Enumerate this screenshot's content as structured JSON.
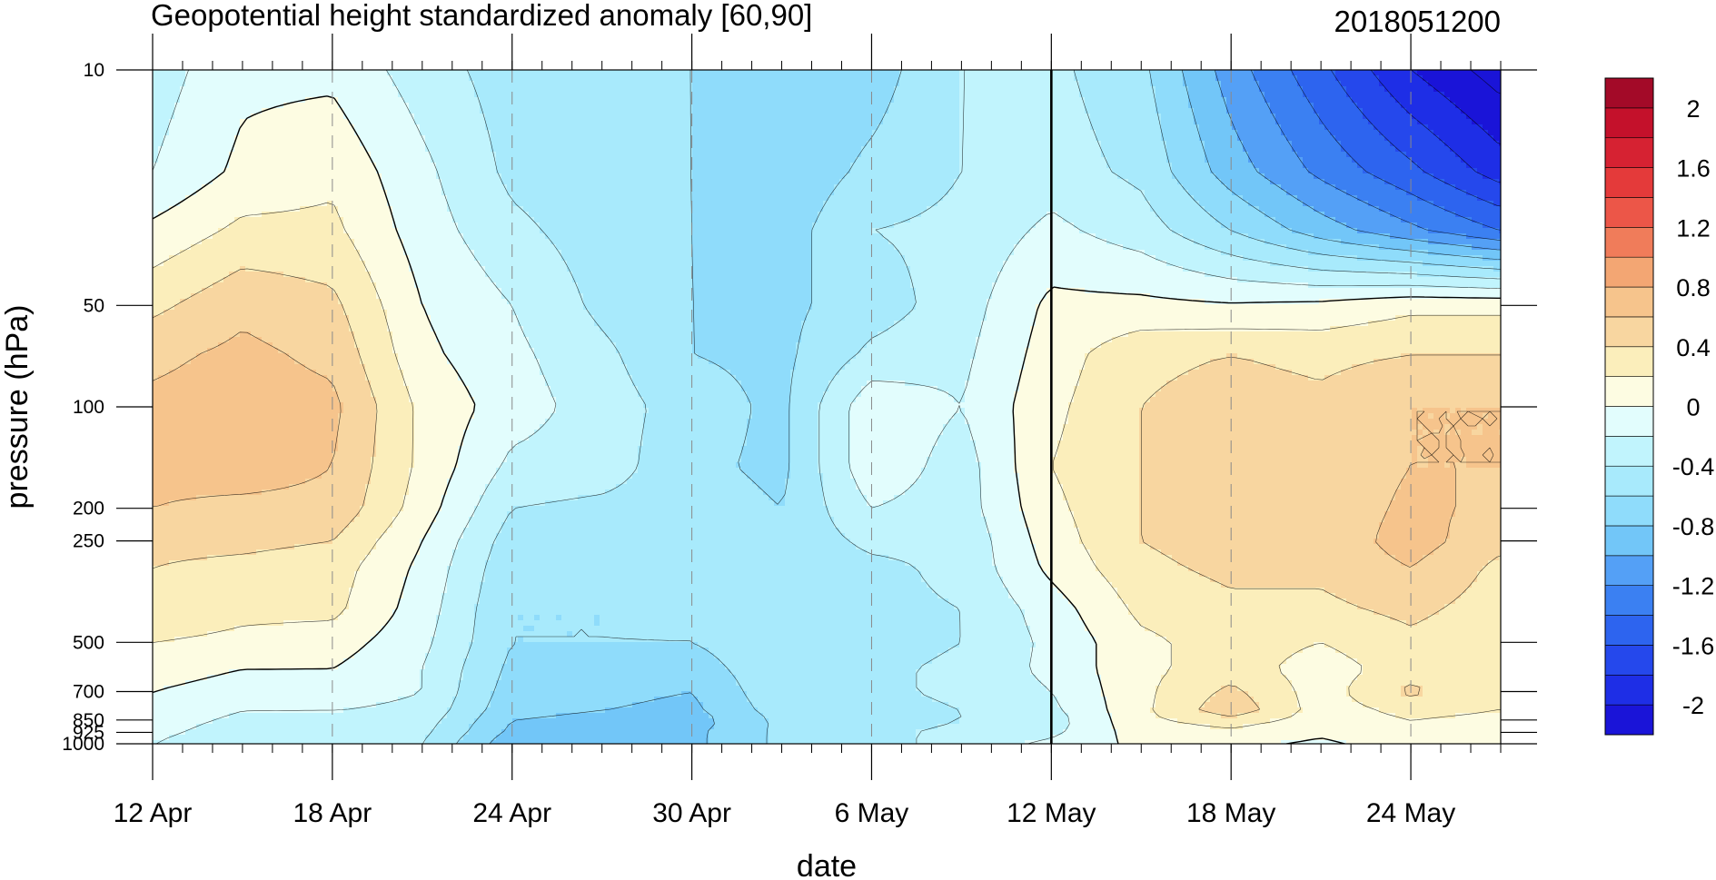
{
  "chart_data": {
    "type": "heatmap",
    "title": "Geopotential height standardized anomaly [60,90]",
    "subtitle": "2018051200",
    "xlabel": "date",
    "ylabel": "pressure (hPa)",
    "x_ticks": [
      "12 Apr",
      "18 Apr",
      "24 Apr",
      "30 Apr",
      "6 May",
      "12 May",
      "18 May",
      "24 May"
    ],
    "x_tick_days": [
      0,
      6,
      12,
      18,
      24,
      30,
      36,
      42
    ],
    "x_range_days": [
      0,
      45
    ],
    "y_ticks": [
      "10",
      "50",
      "100",
      "200",
      "250",
      "500",
      "700",
      "850",
      "925",
      "1000"
    ],
    "y_tick_values": [
      10,
      50,
      100,
      200,
      250,
      500,
      700,
      850,
      925,
      1000
    ],
    "y_range": [
      1000,
      10
    ],
    "y_scale": "log",
    "y_reversed": true,
    "reference_line": "12 May",
    "colorbar_labels": [
      "2",
      "1.6",
      "1.2",
      "0.8",
      "0.4",
      "0",
      "-0.4",
      "-0.8",
      "-1.2",
      "-1.6",
      "-2"
    ],
    "contour_levels": [
      -2.2,
      -2,
      -1.8,
      -1.6,
      -1.4,
      -1.2,
      -1,
      -0.8,
      -0.6,
      -0.4,
      -0.2,
      0,
      0.2,
      0.4,
      0.6,
      0.8,
      1,
      1.2,
      1.4,
      1.6,
      1.8,
      2,
      2.2
    ],
    "colors": [
      "#1a14d8",
      "#1e2ee6",
      "#2548ec",
      "#2d64ef",
      "#3b80f2",
      "#54a0f6",
      "#72c6f8",
      "#8fdcfb",
      "#a8eafc",
      "#c1f4fd",
      "#e2fdfd",
      "#fdfce2",
      "#fbeebb",
      "#f8d6a0",
      "#f6c48c",
      "#f3a673",
      "#f07c5a",
      "#ec5648",
      "#e43a3a",
      "#d62232",
      "#c4112b",
      "#a30a28"
    ],
    "pressure_levels": [
      10,
      20,
      30,
      50,
      70,
      100,
      150,
      200,
      250,
      300,
      400,
      500,
      600,
      700,
      800,
      850,
      925,
      1000
    ],
    "times_days": [
      0,
      3,
      6,
      9,
      12,
      15,
      18,
      21,
      24,
      27,
      30,
      33,
      36,
      39,
      42,
      45
    ],
    "values": [
      [
        -0.3,
        -0.05,
        -0.05,
        -0.3,
        -0.5,
        -0.6,
        -0.6,
        -0.8,
        -0.7,
        -0.4,
        -0.35,
        -0.55,
        -1.1,
        -1.55,
        -2.0,
        -2.3
      ],
      [
        -0.2,
        0.05,
        0.15,
        -0.15,
        -0.45,
        -0.55,
        -0.6,
        -0.75,
        -0.55,
        -0.4,
        -0.3,
        -0.45,
        -0.9,
        -1.25,
        -1.55,
        -1.9
      ],
      [
        0.05,
        0.25,
        0.25,
        -0.1,
        -0.35,
        -0.5,
        -0.6,
        -0.7,
        -0.4,
        -0.35,
        -0.15,
        -0.3,
        -0.6,
        -0.9,
        -1.15,
        -1.4
      ],
      [
        0.35,
        0.55,
        0.45,
        0.0,
        -0.2,
        -0.45,
        -0.6,
        -0.65,
        -0.5,
        -0.3,
        0.05,
        0.05,
        0.02,
        0.05,
        0.15,
        0.15
      ],
      [
        0.55,
        0.65,
        0.55,
        0.05,
        -0.15,
        -0.35,
        -0.6,
        -0.65,
        -0.35,
        -0.25,
        0.1,
        0.35,
        0.4,
        0.35,
        0.4,
        0.4
      ],
      [
        0.65,
        0.7,
        0.65,
        0.15,
        -0.1,
        -0.3,
        -0.5,
        -0.65,
        -0.05,
        -0.2,
        0.15,
        0.4,
        0.5,
        0.45,
        0.6,
        0.6
      ],
      [
        0.65,
        0.7,
        0.6,
        0.15,
        -0.25,
        -0.3,
        -0.55,
        -0.65,
        -0.05,
        -0.3,
        0.2,
        0.4,
        0.5,
        0.45,
        0.6,
        0.6
      ],
      [
        0.6,
        0.55,
        0.55,
        0.1,
        -0.4,
        -0.45,
        -0.5,
        -0.6,
        -0.2,
        -0.3,
        0.15,
        0.4,
        0.5,
        0.45,
        0.65,
        0.55
      ],
      [
        0.45,
        0.45,
        0.4,
        0.0,
        -0.5,
        -0.5,
        -0.45,
        -0.55,
        -0.35,
        -0.35,
        0.1,
        0.4,
        0.5,
        0.45,
        0.7,
        0.45
      ],
      [
        0.4,
        0.35,
        0.3,
        -0.05,
        -0.55,
        -0.55,
        -0.5,
        -0.55,
        -0.45,
        -0.35,
        0.05,
        0.35,
        0.45,
        0.45,
        0.6,
        0.35
      ],
      [
        0.35,
        0.25,
        0.25,
        -0.1,
        -0.6,
        -0.6,
        -0.55,
        -0.5,
        -0.45,
        -0.4,
        -0.1,
        0.25,
        0.35,
        0.35,
        0.45,
        0.3
      ],
      [
        0.2,
        0.15,
        0.1,
        -0.15,
        -0.6,
        -0.6,
        -0.6,
        -0.45,
        -0.5,
        -0.4,
        -0.15,
        0.15,
        0.3,
        0.2,
        0.35,
        0.25
      ],
      [
        0.1,
        0.0,
        0.0,
        -0.2,
        -0.65,
        -0.7,
        -0.7,
        -0.45,
        -0.45,
        -0.35,
        -0.15,
        0.15,
        0.3,
        0.1,
        0.3,
        0.2
      ],
      [
        0.0,
        -0.1,
        -0.1,
        -0.2,
        -0.7,
        -0.75,
        -0.8,
        -0.45,
        -0.45,
        -0.35,
        -0.2,
        0.15,
        0.45,
        0.1,
        0.45,
        0.2
      ],
      [
        -0.05,
        -0.2,
        -0.2,
        -0.25,
        -0.75,
        -0.8,
        -0.85,
        -0.5,
        -0.5,
        -0.4,
        -0.25,
        0.15,
        0.55,
        0.1,
        0.25,
        0.2
      ],
      [
        -0.1,
        -0.25,
        -0.3,
        -0.3,
        -0.8,
        -0.85,
        -0.9,
        -0.55,
        -0.5,
        -0.4,
        -0.3,
        0.15,
        0.3,
        0.1,
        0.2,
        0.15
      ],
      [
        -0.15,
        -0.3,
        -0.35,
        -0.35,
        -0.85,
        -0.9,
        -0.85,
        -0.55,
        -0.45,
        -0.35,
        -0.25,
        0.1,
        0.15,
        0.05,
        0.15,
        0.1
      ],
      [
        -0.2,
        -0.35,
        -0.4,
        -0.4,
        -0.95,
        -0.95,
        -0.85,
        -0.55,
        -0.5,
        -0.3,
        -0.15,
        0.05,
        0.05,
        -0.05,
        0.1,
        0.1
      ]
    ]
  }
}
